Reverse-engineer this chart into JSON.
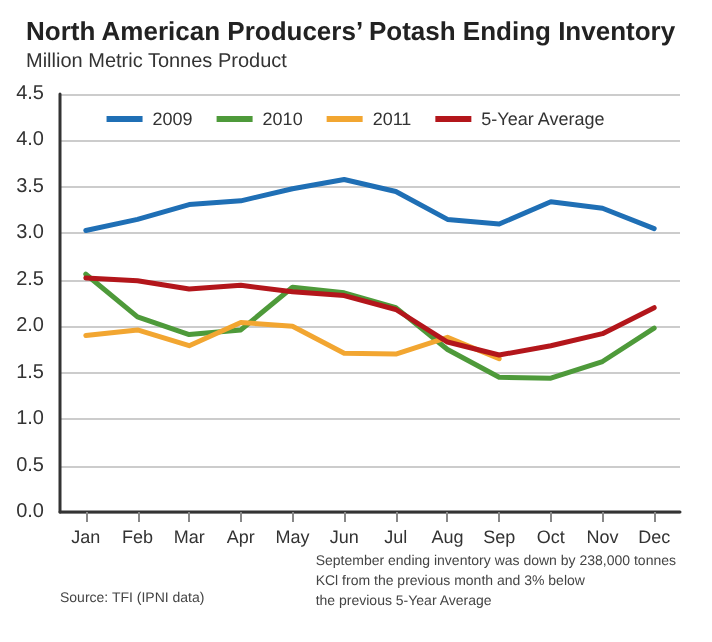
{
  "chart_data": {
    "type": "line",
    "title": "North American Producers’ Potash Ending Inventory",
    "subtitle": "Million Metric Tonnes Product",
    "categories": [
      "Jan",
      "Feb",
      "Mar",
      "Apr",
      "May",
      "Jun",
      "Jul",
      "Aug",
      "Sep",
      "Oct",
      "Nov",
      "Dec"
    ],
    "series": [
      {
        "name": "2009",
        "color": "#1f6fb5",
        "values": [
          3.03,
          3.15,
          3.31,
          3.35,
          3.48,
          3.58,
          3.45,
          3.15,
          3.1,
          3.34,
          3.27,
          3.05
        ]
      },
      {
        "name": "2010",
        "color": "#4e9a3a",
        "values": [
          2.56,
          2.1,
          1.91,
          1.96,
          2.42,
          2.36,
          2.2,
          1.75,
          1.45,
          1.44,
          1.62,
          1.98
        ]
      },
      {
        "name": "2011",
        "color": "#f2a631",
        "values": [
          1.9,
          1.96,
          1.79,
          2.04,
          2.0,
          1.71,
          1.7,
          1.88,
          1.65,
          null,
          null,
          null
        ]
      },
      {
        "name": "5-Year Average",
        "color": "#b3161b",
        "values": [
          2.52,
          2.49,
          2.4,
          2.44,
          2.37,
          2.33,
          2.18,
          1.83,
          1.69,
          1.79,
          1.92,
          2.2
        ]
      }
    ],
    "ylim": [
      0,
      4.5
    ],
    "yticks": [
      {
        "value": 0,
        "label": "0.0"
      },
      {
        "value": 0.5,
        "label": "0.5"
      },
      {
        "value": 1,
        "label": "1.0"
      },
      {
        "value": 1.5,
        "label": "1.5"
      },
      {
        "value": 2,
        "label": "2.0"
      },
      {
        "value": 2.5,
        "label": "2.5"
      },
      {
        "value": 3,
        "label": "3.0"
      },
      {
        "value": 3.5,
        "label": "3.5"
      },
      {
        "value": 4,
        "label": "4.0"
      },
      {
        "value": 4.5,
        "label": "4.5"
      }
    ],
    "grid": "y",
    "legend": "top",
    "marker": "none",
    "line_style": "solid",
    "annotations": [
      "September ending inventory was down by 238,000 tonnes\nKCl from the previous month and 3% below\nthe previous 5-Year Average",
      "Source: TFI (IPNI data)"
    ]
  }
}
